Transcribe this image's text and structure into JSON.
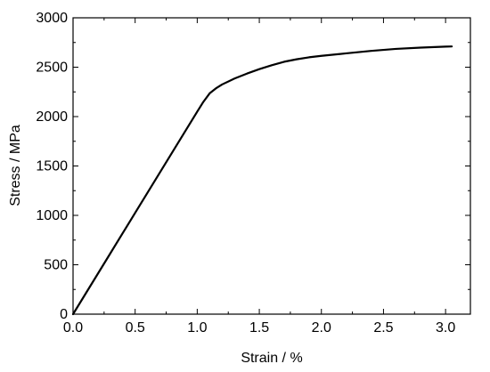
{
  "chart_data": {
    "type": "line",
    "title": "",
    "xlabel": "Strain / %",
    "ylabel": "Stress / MPa",
    "xlim": [
      0,
      3.2
    ],
    "ylim": [
      0,
      3000
    ],
    "x_ticks": [
      0.0,
      0.5,
      1.0,
      1.5,
      2.0,
      2.5,
      3.0
    ],
    "x_tick_labels": [
      "0.0",
      "0.5",
      "1.0",
      "1.5",
      "2.0",
      "2.5",
      "3.0"
    ],
    "y_ticks": [
      0,
      500,
      1000,
      1500,
      2000,
      2500,
      3000
    ],
    "y_tick_labels": [
      "0",
      "500",
      "1000",
      "1500",
      "2000",
      "2500",
      "3000"
    ],
    "grid": false,
    "legend": "none",
    "series": [
      {
        "color": "#000000",
        "x": [
          0.0,
          0.1,
          0.2,
          0.3,
          0.4,
          0.5,
          0.6,
          0.7,
          0.8,
          0.9,
          1.0,
          1.05,
          1.1,
          1.15,
          1.2,
          1.3,
          1.4,
          1.5,
          1.6,
          1.7,
          1.8,
          1.9,
          2.0,
          2.2,
          2.4,
          2.6,
          2.8,
          3.0,
          3.05
        ],
        "y": [
          0,
          205,
          410,
          615,
          820,
          1025,
          1230,
          1435,
          1640,
          1845,
          2050,
          2150,
          2235,
          2285,
          2325,
          2385,
          2435,
          2480,
          2520,
          2555,
          2580,
          2600,
          2615,
          2640,
          2665,
          2685,
          2698,
          2708,
          2710
        ]
      }
    ]
  }
}
